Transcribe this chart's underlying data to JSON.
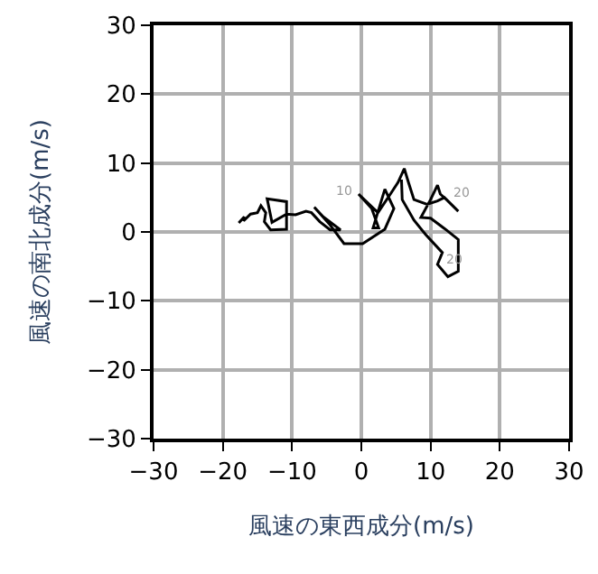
{
  "chart_data": {
    "type": "line",
    "xlabel": "風速の東西成分(m/s)",
    "ylabel": "風速の南北成分(m/s)",
    "xlim": [
      -30,
      30
    ],
    "ylim": [
      -30,
      30
    ],
    "xticks": [
      -30,
      -20,
      -10,
      0,
      10,
      20,
      30
    ],
    "yticks": [
      -30,
      -20,
      -10,
      0,
      10,
      20,
      30
    ],
    "grid": true,
    "series": [
      {
        "color": "#000000",
        "x": [
          -17.7,
          -16.9,
          -17.0,
          -16.0,
          -15.0,
          -14.5,
          -13.8,
          -14.0,
          -13.1,
          -10.8,
          -10.8,
          -13.6,
          -12.9,
          -10.8,
          -9.5,
          -8.0,
          -7.2,
          -6.0,
          -4.5,
          -3.0,
          -5.5,
          -6.8,
          -4.5,
          -2.5,
          0.2,
          3.4,
          4.7,
          3.4,
          1.7,
          2.5,
          1.5,
          -0.4,
          2.4,
          4.2,
          5.3,
          6.2,
          6.8,
          7.6,
          9.5,
          11.0,
          12.0,
          14.0,
          12.5,
          11.4,
          11.0,
          10.0,
          8.6,
          10.0,
          12.0,
          14.0,
          14.0,
          12.5,
          11.0,
          11.7,
          9.3,
          7.6,
          5.9,
          5.8
        ],
        "values": [
          1.3,
          2.2,
          1.6,
          2.6,
          2.8,
          3.8,
          2.8,
          1.5,
          0.3,
          0.4,
          4.4,
          4.8,
          1.4,
          2.6,
          2.5,
          3.0,
          2.8,
          1.5,
          0.3,
          0.3,
          2.2,
          3.6,
          1.0,
          -1.7,
          -1.7,
          0.4,
          3.4,
          6.2,
          0.6,
          0.6,
          3.4,
          5.5,
          2.8,
          5.5,
          7.2,
          9.2,
          7.2,
          4.7,
          4.0,
          4.5,
          5.0,
          3.0,
          4.5,
          5.5,
          6.8,
          4.7,
          2.1,
          2.0,
          0.5,
          -1.1,
          -5.7,
          -6.5,
          -4.7,
          -3.0,
          -0.4,
          1.7,
          4.7,
          7.6
        ]
      }
    ],
    "annotations": [
      {
        "text": "10",
        "x": -0.4,
        "y": 5.5
      },
      {
        "text": "20",
        "x": 12.0,
        "y": 5.0
      },
      {
        "text": "20",
        "x": 11.0,
        "y": -4.7
      }
    ]
  }
}
